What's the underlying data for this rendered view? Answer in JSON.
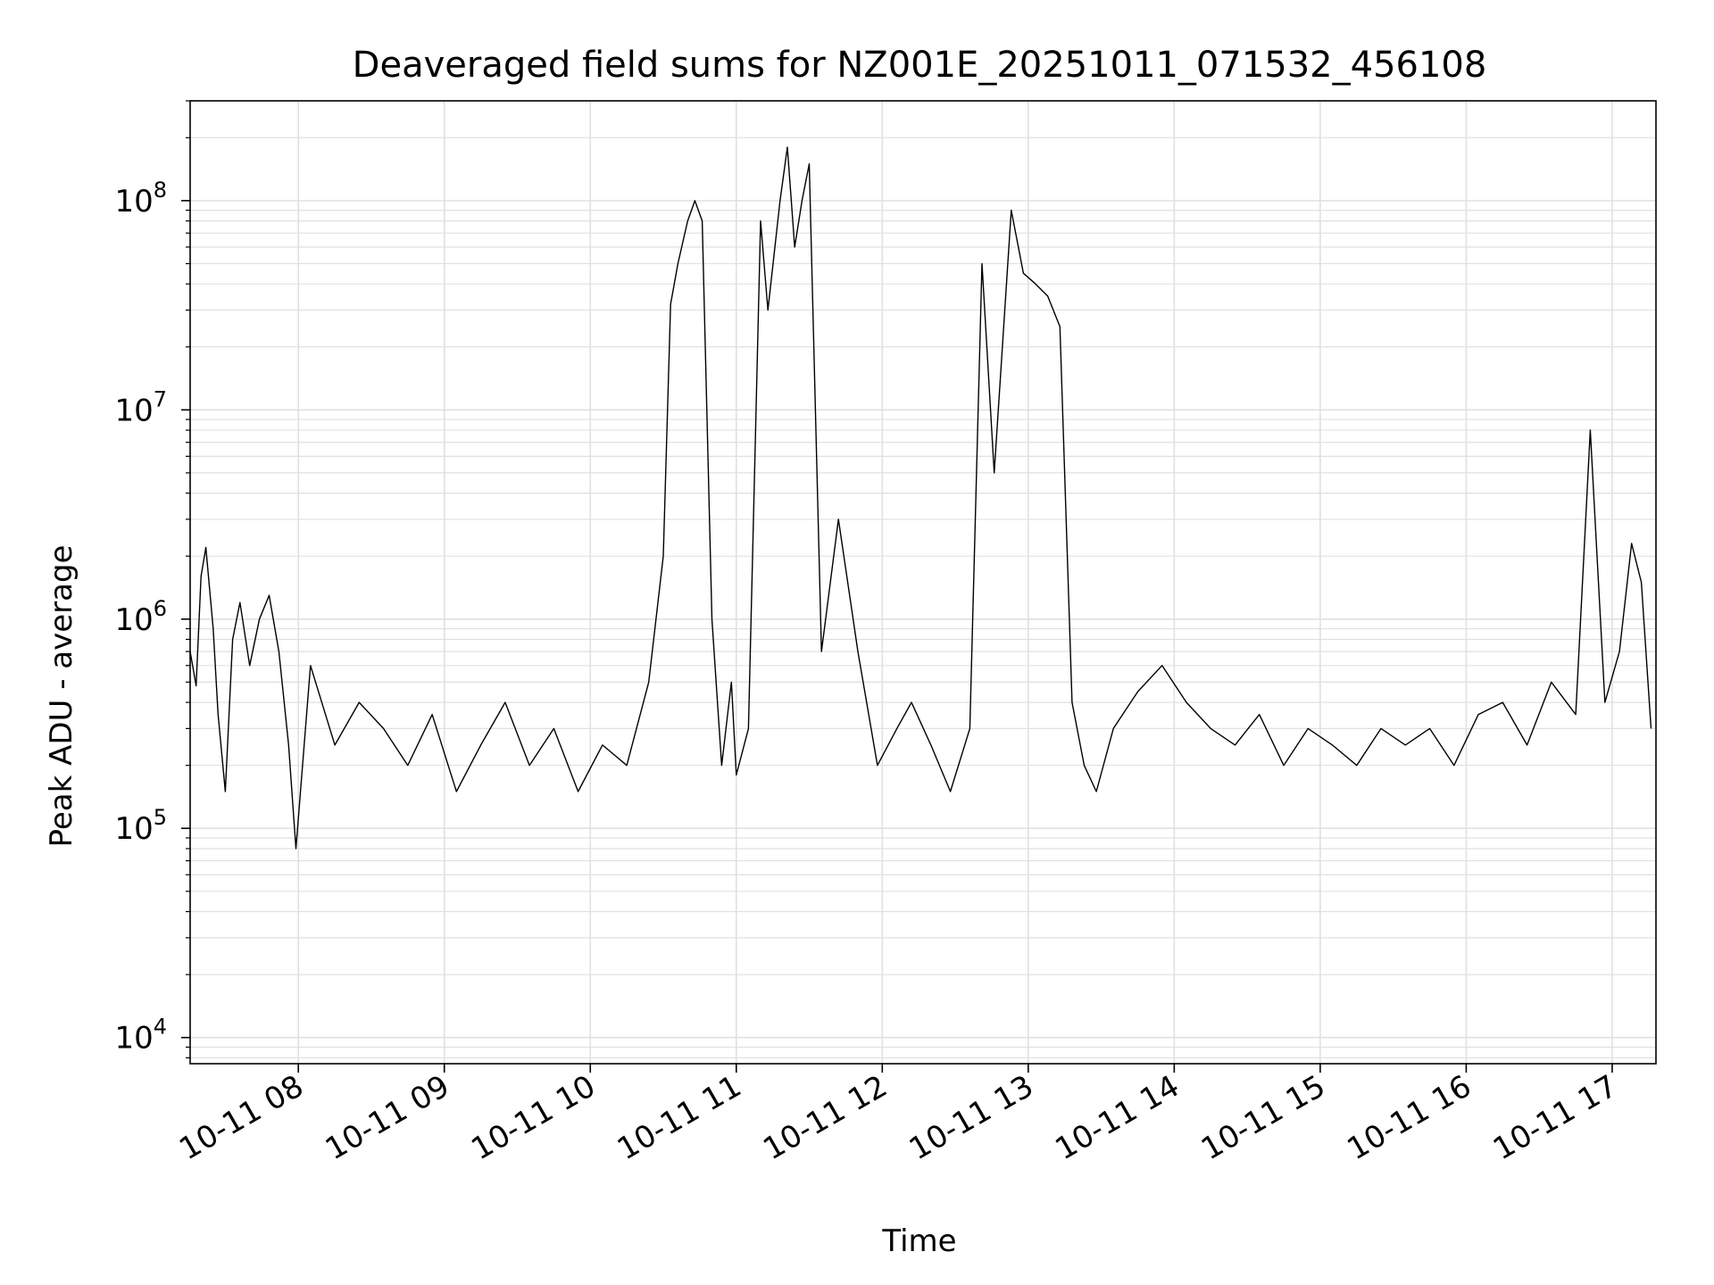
{
  "chart_data": {
    "type": "line",
    "title": "Deaveraged field sums for NZ001E_20251011_071532_456108",
    "xlabel": "Time",
    "ylabel": "Peak ADU - average",
    "y_scale": "log",
    "ylim": [
      7500,
      300000000
    ],
    "xlim": [
      "2025-10-11 07:15:32",
      "2025-10-11 17:18:00"
    ],
    "grid": true,
    "legend": "none",
    "line_color": "#000000",
    "grid_color": "#e0e0e0",
    "x_ticks": [
      {
        "value": "2025-10-11 08:00",
        "label": "10-11 08"
      },
      {
        "value": "2025-10-11 09:00",
        "label": "10-11 09"
      },
      {
        "value": "2025-10-11 10:00",
        "label": "10-11 10"
      },
      {
        "value": "2025-10-11 11:00",
        "label": "10-11 11"
      },
      {
        "value": "2025-10-11 12:00",
        "label": "10-11 12"
      },
      {
        "value": "2025-10-11 13:00",
        "label": "10-11 13"
      },
      {
        "value": "2025-10-11 14:00",
        "label": "10-11 14"
      },
      {
        "value": "2025-10-11 15:00",
        "label": "10-11 15"
      },
      {
        "value": "2025-10-11 16:00",
        "label": "10-11 16"
      },
      {
        "value": "2025-10-11 17:00",
        "label": "10-11 17"
      }
    ],
    "y_ticks": [
      {
        "value": 10000,
        "base": "10",
        "exp": "4"
      },
      {
        "value": 100000,
        "base": "10",
        "exp": "5"
      },
      {
        "value": 1000000,
        "base": "10",
        "exp": "6"
      },
      {
        "value": 10000000,
        "base": "10",
        "exp": "7"
      },
      {
        "value": 100000000,
        "base": "10",
        "exp": "8"
      }
    ],
    "series": [
      {
        "x": [
          "2025-10-11 07:15:32",
          "2025-10-11 07:18",
          "2025-10-11 07:20",
          "2025-10-11 07:22",
          "2025-10-11 07:25",
          "2025-10-11 07:27",
          "2025-10-11 07:30",
          "2025-10-11 07:33",
          "2025-10-11 07:36",
          "2025-10-11 07:40",
          "2025-10-11 07:44",
          "2025-10-11 07:48",
          "2025-10-11 07:52",
          "2025-10-11 07:56",
          "2025-10-11 07:59",
          "2025-10-11 08:05",
          "2025-10-11 08:15",
          "2025-10-11 08:25",
          "2025-10-11 08:35",
          "2025-10-11 08:45",
          "2025-10-11 08:55",
          "2025-10-11 09:05",
          "2025-10-11 09:15",
          "2025-10-11 09:25",
          "2025-10-11 09:35",
          "2025-10-11 09:45",
          "2025-10-11 09:55",
          "2025-10-11 10:05",
          "2025-10-11 10:15",
          "2025-10-11 10:24",
          "2025-10-11 10:30",
          "2025-10-11 10:33",
          "2025-10-11 10:36",
          "2025-10-11 10:40",
          "2025-10-11 10:43",
          "2025-10-11 10:46",
          "2025-10-11 10:50",
          "2025-10-11 10:54",
          "2025-10-11 10:58",
          "2025-10-11 11:00",
          "2025-10-11 11:05",
          "2025-10-11 11:10",
          "2025-10-11 11:13",
          "2025-10-11 11:18",
          "2025-10-11 11:21",
          "2025-10-11 11:24",
          "2025-10-11 11:27",
          "2025-10-11 11:30",
          "2025-10-11 11:35",
          "2025-10-11 11:42",
          "2025-10-11 11:50",
          "2025-10-11 11:58",
          "2025-10-11 12:06",
          "2025-10-11 12:12",
          "2025-10-11 12:20",
          "2025-10-11 12:28",
          "2025-10-11 12:36",
          "2025-10-11 12:41",
          "2025-10-11 12:46",
          "2025-10-11 12:53",
          "2025-10-11 12:58",
          "2025-10-11 13:03",
          "2025-10-11 13:08",
          "2025-10-11 13:13",
          "2025-10-11 13:18",
          "2025-10-11 13:23",
          "2025-10-11 13:28",
          "2025-10-11 13:35",
          "2025-10-11 13:45",
          "2025-10-11 13:55",
          "2025-10-11 14:05",
          "2025-10-11 14:15",
          "2025-10-11 14:25",
          "2025-10-11 14:35",
          "2025-10-11 14:45",
          "2025-10-11 14:55",
          "2025-10-11 15:05",
          "2025-10-11 15:15",
          "2025-10-11 15:25",
          "2025-10-11 15:35",
          "2025-10-11 15:45",
          "2025-10-11 15:55",
          "2025-10-11 16:05",
          "2025-10-11 16:15",
          "2025-10-11 16:25",
          "2025-10-11 16:35",
          "2025-10-11 16:45",
          "2025-10-11 16:51",
          "2025-10-11 16:57",
          "2025-10-11 17:03",
          "2025-10-11 17:08",
          "2025-10-11 17:12",
          "2025-10-11 17:16"
        ],
        "y": [
          700000,
          480000,
          1600000,
          2200000,
          900000,
          350000,
          150000,
          800000,
          1200000,
          600000,
          1000000,
          1300000,
          700000,
          250000,
          80000,
          600000,
          250000,
          400000,
          300000,
          200000,
          350000,
          150000,
          250000,
          400000,
          200000,
          300000,
          150000,
          250000,
          200000,
          500000,
          2000000,
          32000000,
          50000000,
          80000000,
          100000000,
          80000000,
          1000000,
          200000,
          500000,
          180000,
          300000,
          80000000,
          30000000,
          100000000,
          180000000,
          60000000,
          100000000,
          150000000,
          700000,
          3000000,
          700000,
          200000,
          300000,
          400000,
          250000,
          150000,
          300000,
          50000000,
          5000000,
          90000000,
          45000000,
          40000000,
          35000000,
          25000000,
          400000,
          200000,
          150000,
          300000,
          450000,
          600000,
          400000,
          300000,
          250000,
          350000,
          200000,
          300000,
          250000,
          200000,
          300000,
          250000,
          300000,
          200000,
          350000,
          400000,
          250000,
          500000,
          350000,
          8000000,
          400000,
          700000,
          2300000,
          1500000,
          300000
        ]
      }
    ]
  }
}
